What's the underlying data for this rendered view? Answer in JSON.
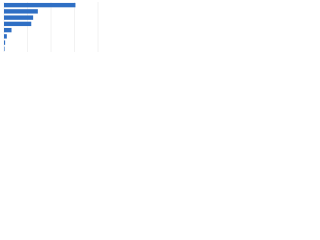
{
  "chart_data": {
    "type": "bar",
    "orientation": "horizontal",
    "values": [
      76,
      36,
      31,
      29,
      8,
      3,
      1.2,
      0.6
    ],
    "color": "#2f6fc4",
    "xlim": [
      0,
      100
    ],
    "xticks": [
      0,
      25,
      50,
      75,
      100
    ],
    "grid": true
  }
}
